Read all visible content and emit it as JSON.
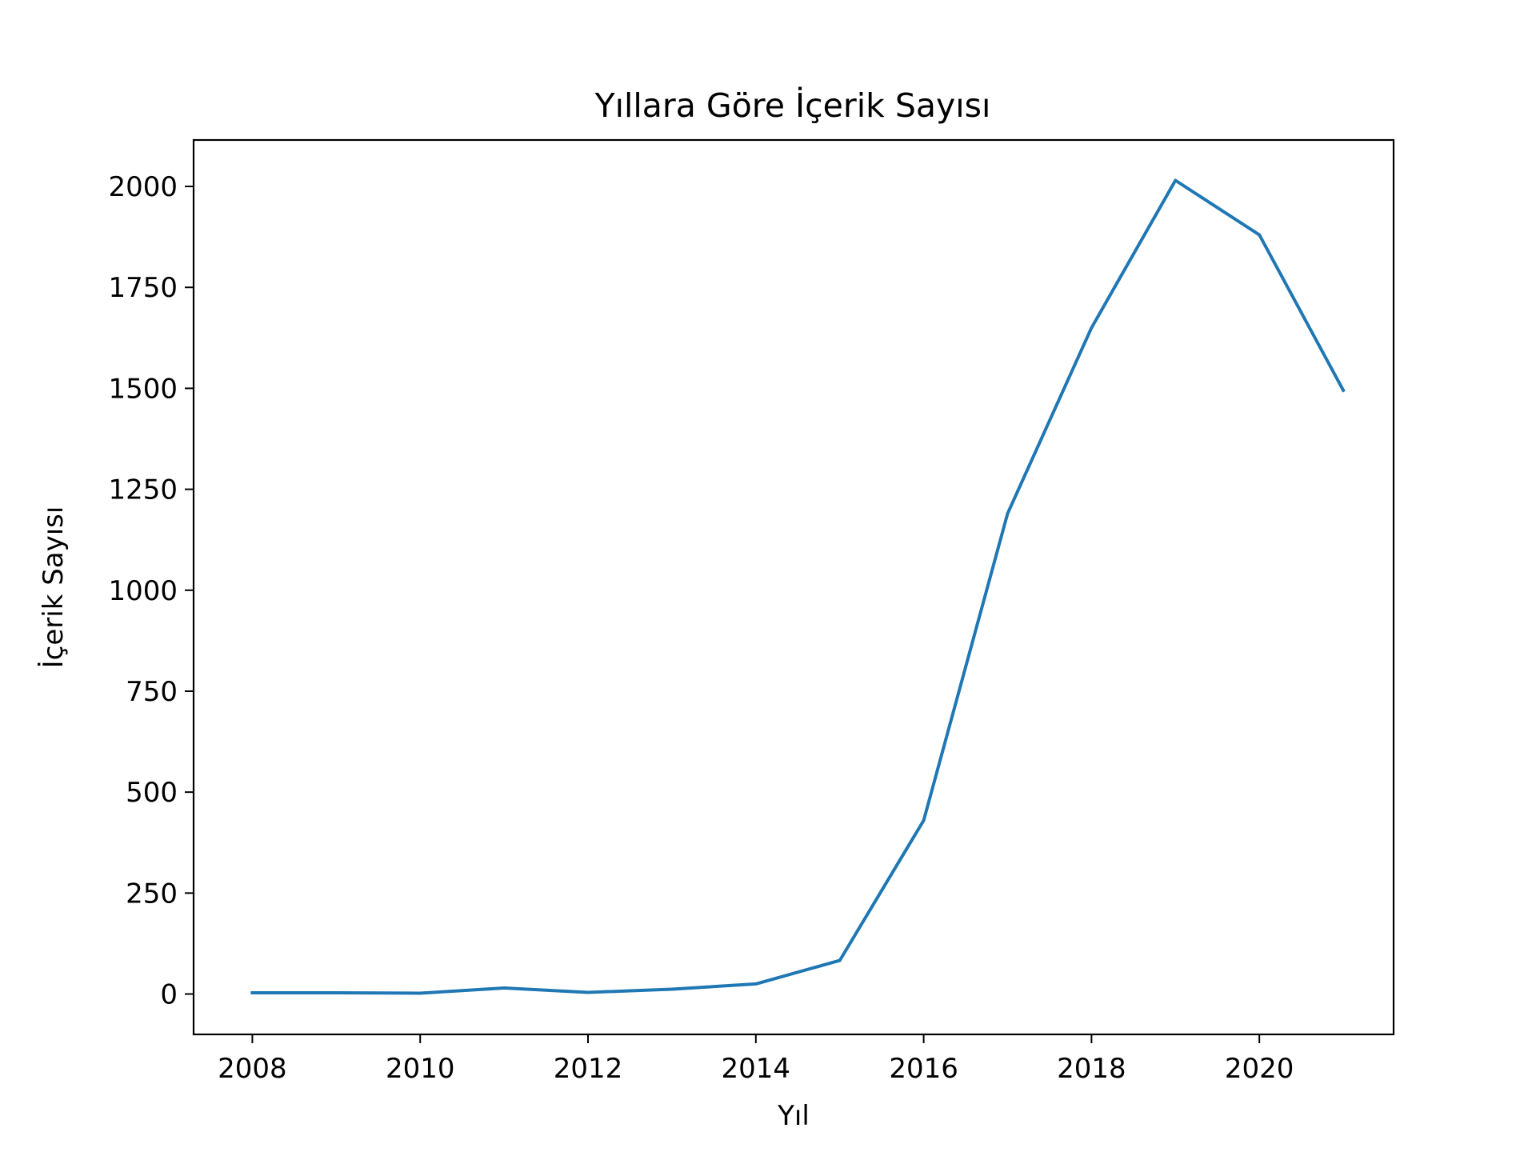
{
  "chart_data": {
    "type": "line",
    "title": "Yıllara Göre İçerik Sayısı",
    "xlabel": "Yıl",
    "ylabel": "İçerik Sayısı",
    "xlim": [
      2007.3,
      2021.6
    ],
    "ylim": [
      -100,
      2115
    ],
    "grid": false,
    "xticks": [
      2008,
      2010,
      2012,
      2014,
      2016,
      2018,
      2020
    ],
    "yticks": [
      0,
      250,
      500,
      750,
      1000,
      1250,
      1500,
      1750,
      2000
    ],
    "line_color": "#1f77b4",
    "series": [
      {
        "x": [
          2008,
          2009,
          2010,
          2011,
          2012,
          2013,
          2014,
          2015,
          2016,
          2017,
          2018,
          2019,
          2020,
          2021
        ],
        "values": [
          3,
          3,
          2,
          15,
          4,
          12,
          25,
          83,
          430,
          1190,
          1650,
          2015,
          1880,
          1495
        ]
      }
    ]
  }
}
